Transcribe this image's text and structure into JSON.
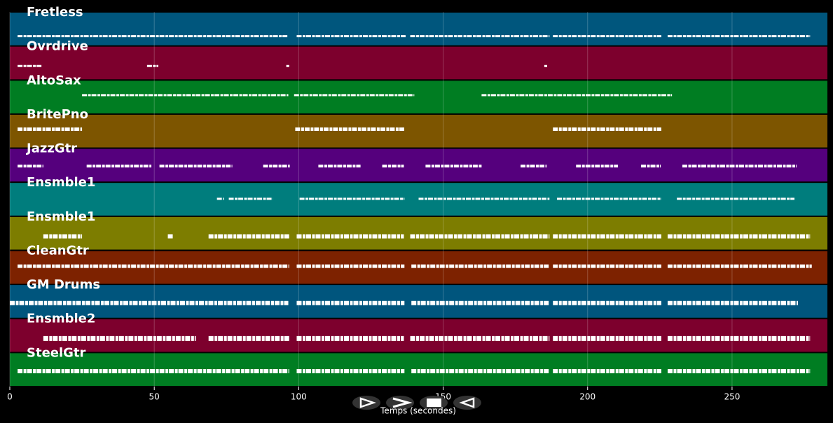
{
  "chart_data": {
    "type": "piano-roll",
    "x_label": "Temps (secondes)",
    "xlim": [
      0,
      283
    ],
    "xticks": [
      0,
      50,
      100,
      150,
      200,
      250
    ],
    "grid": true,
    "note_color": "#ffffff",
    "tracks": [
      {
        "name": "Fretless",
        "color": "#00567d",
        "segments": [
          [
            2.7,
            96.4
          ],
          [
            99.3,
            137
          ],
          [
            138.6,
            186.8
          ],
          [
            188,
            225.5
          ],
          [
            227.7,
            277
          ]
        ]
      },
      {
        "name": "Ovrdrive",
        "color": "#7d002d",
        "segments": [
          [
            2.7,
            11
          ],
          [
            47.5,
            51.4
          ],
          [
            95.7,
            96.7
          ],
          [
            185,
            186
          ]
        ]
      },
      {
        "name": "AltoSax",
        "color": "#007d22",
        "segments": [
          [
            25,
            96.4
          ],
          [
            98.4,
            140
          ],
          [
            163.3,
            229.2
          ]
        ]
      },
      {
        "name": "BritePno",
        "color": "#7d5500",
        "segments": [
          [
            2.7,
            25
          ],
          [
            98.8,
            136.6
          ],
          [
            188,
            225.5
          ]
        ]
      },
      {
        "name": "JazzGtr",
        "color": "#55007d",
        "segments": [
          [
            2.7,
            11.6
          ],
          [
            26.6,
            49
          ],
          [
            51.8,
            77
          ],
          [
            87.7,
            96.9
          ],
          [
            106.8,
            121.4
          ],
          [
            128.9,
            136.4
          ],
          [
            143.9,
            163.3
          ],
          [
            176.8,
            185.8
          ],
          [
            196,
            210.5
          ],
          [
            218.5,
            225.3
          ],
          [
            232.8,
            272.3
          ]
        ]
      },
      {
        "name": "Ensmble1",
        "color": "#007d7d",
        "segments": [
          [
            71.7,
            74.1
          ],
          [
            75.8,
            91
          ],
          [
            100.3,
            136.6
          ],
          [
            141.5,
            186.8
          ],
          [
            189.4,
            225.5
          ],
          [
            230.9,
            271.6
          ]
        ]
      },
      {
        "name": "Ensmble1",
        "color": "#7d7d00",
        "segments": [
          [
            11.6,
            25
          ],
          [
            54.7,
            56.7
          ],
          [
            68.8,
            96.7
          ],
          [
            99.3,
            136.4
          ],
          [
            138.6,
            186.8
          ],
          [
            188,
            225.5
          ],
          [
            227.7,
            277
          ]
        ]
      },
      {
        "name": "CleanGtr",
        "color": "#7d2200",
        "segments": [
          [
            2.7,
            96.7
          ],
          [
            99.3,
            136.6
          ],
          [
            139,
            186.8
          ],
          [
            188,
            225.5
          ],
          [
            227.7,
            277.6
          ]
        ]
      },
      {
        "name": "GM Drums",
        "color": "#00557d",
        "segments": [
          [
            0,
            96.4
          ],
          [
            99.3,
            136.6
          ],
          [
            139,
            186.8
          ],
          [
            188,
            225.5
          ],
          [
            227.7,
            272.8
          ]
        ]
      },
      {
        "name": "Ensmble2",
        "color": "#7d002d",
        "segments": [
          [
            11.6,
            64.4
          ],
          [
            68.8,
            96.7
          ],
          [
            99.3,
            136.4
          ],
          [
            138.6,
            186.8
          ],
          [
            188,
            225.5
          ],
          [
            227.7,
            277
          ]
        ]
      },
      {
        "name": "SteelGtr",
        "color": "#007d22",
        "segments": [
          [
            2.7,
            96.7
          ],
          [
            99.3,
            136.6
          ],
          [
            139,
            186.8
          ],
          [
            188,
            225.5
          ],
          [
            227.7,
            277
          ]
        ]
      }
    ]
  }
}
